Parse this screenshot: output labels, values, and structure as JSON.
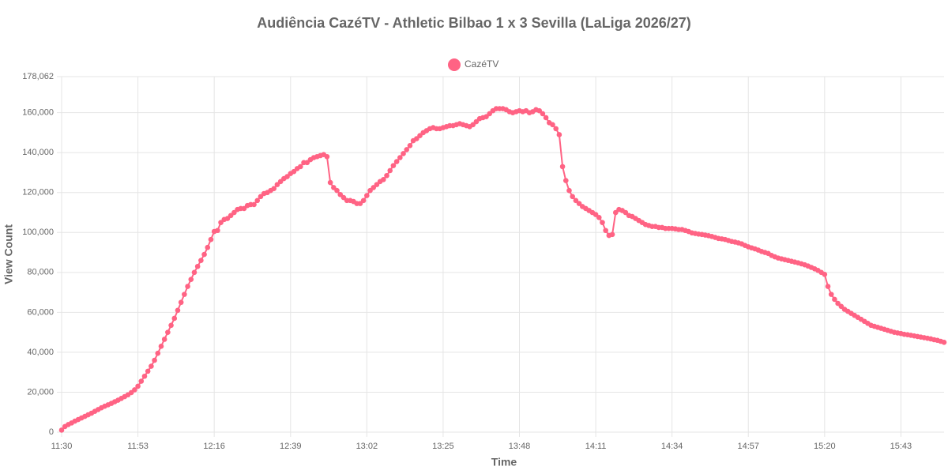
{
  "chart_data": {
    "type": "line",
    "title": "Audiência CazéTV - Athletic Bilbao 1 x 3 Sevilla (LaLiga 2026/27)",
    "x_label": "Time",
    "y_label": "View Count",
    "categories": [
      "11:30",
      null,
      null,
      null,
      null,
      null,
      null,
      null,
      null,
      null,
      null,
      null,
      null,
      null,
      null,
      null,
      null,
      null,
      null,
      null,
      null,
      null,
      null,
      "11:53",
      null,
      null,
      null,
      null,
      null,
      null,
      null,
      null,
      null,
      null,
      null,
      null,
      null,
      null,
      null,
      null,
      null,
      null,
      null,
      null,
      null,
      null,
      "12:16",
      null,
      null,
      null,
      null,
      null,
      null,
      null,
      null,
      null,
      null,
      null,
      null,
      null,
      null,
      null,
      null,
      null,
      null,
      null,
      null,
      null,
      null,
      "12:39",
      null,
      null,
      null,
      null,
      null,
      null,
      null,
      null,
      null,
      null,
      null,
      null,
      null,
      null,
      null,
      null,
      null,
      null,
      null,
      null,
      null,
      null,
      "13:02",
      null,
      null,
      null,
      null,
      null,
      null,
      null,
      null,
      null,
      null,
      null,
      null,
      null,
      null,
      null,
      null,
      null,
      null,
      null,
      null,
      null,
      null,
      "13:25",
      null,
      null,
      null,
      null,
      null,
      null,
      null,
      null,
      null,
      null,
      null,
      null,
      null,
      null,
      null,
      null,
      null,
      null,
      null,
      null,
      null,
      null,
      "13:48",
      null,
      null,
      null,
      null,
      null,
      null,
      null,
      null,
      null,
      null,
      null,
      null,
      null,
      null,
      null,
      null,
      null,
      null,
      null,
      null,
      null,
      null,
      "14:11",
      null,
      null,
      null,
      null,
      null,
      null,
      null,
      null,
      null,
      null,
      null,
      null,
      null,
      null,
      null,
      null,
      null,
      null,
      null,
      null,
      null,
      null,
      "14:34",
      null,
      null,
      null,
      null,
      null,
      null,
      null,
      null,
      null,
      null,
      null,
      null,
      null,
      null,
      null,
      null,
      null,
      null,
      null,
      null,
      null,
      null,
      "14:57",
      null,
      null,
      null,
      null,
      null,
      null,
      null,
      null,
      null,
      null,
      null,
      null,
      null,
      null,
      null,
      null,
      null,
      null,
      null,
      null,
      null,
      null,
      "15:20",
      null,
      null,
      null,
      null,
      null,
      null,
      null,
      null,
      null,
      null,
      null,
      null,
      null,
      null,
      null,
      null,
      null,
      null,
      null,
      null,
      null,
      null,
      "15:43",
      null,
      null,
      null,
      null,
      null,
      null,
      null,
      null,
      null,
      null,
      null,
      null,
      null
    ],
    "series": [
      {
        "name": "CazéTV",
        "color": "#ff6384",
        "values": [
          1000,
          2800,
          3800,
          4600,
          5500,
          6300,
          7100,
          7900,
          8700,
          9500,
          10400,
          11300,
          12200,
          13000,
          13700,
          14400,
          15200,
          16000,
          16900,
          17800,
          18700,
          19800,
          21200,
          23000,
          25500,
          28000,
          30500,
          33000,
          36000,
          39500,
          43000,
          46500,
          50000,
          53500,
          57000,
          61000,
          65000,
          69000,
          73000,
          76500,
          80000,
          83000,
          86000,
          89000,
          92500,
          96500,
          100500,
          101000,
          105000,
          106500,
          107000,
          108500,
          110000,
          111500,
          112000,
          112000,
          113500,
          114000,
          114000,
          116000,
          118000,
          119500,
          120000,
          121000,
          122000,
          124000,
          125500,
          127000,
          128000,
          129500,
          130500,
          132000,
          133000,
          135000,
          135000,
          136500,
          137500,
          138000,
          138500,
          139000,
          138000,
          125000,
          122500,
          121000,
          119000,
          117500,
          116000,
          116000,
          115500,
          114500,
          114500,
          116000,
          118500,
          121000,
          122500,
          124000,
          125500,
          126500,
          128500,
          131000,
          133500,
          135500,
          137500,
          139500,
          141500,
          143500,
          146000,
          147000,
          148500,
          150000,
          151000,
          152000,
          152500,
          152000,
          152000,
          152500,
          153000,
          153500,
          153500,
          154000,
          154500,
          154000,
          153500,
          153000,
          154000,
          155500,
          157000,
          157500,
          158000,
          159500,
          161000,
          162000,
          162000,
          162000,
          161500,
          160500,
          160000,
          160500,
          161000,
          160500,
          161000,
          160000,
          160500,
          161500,
          161000,
          159500,
          157500,
          155000,
          154000,
          152000,
          149000,
          133000,
          126000,
          121000,
          118000,
          116000,
          114500,
          113000,
          112000,
          111000,
          110000,
          109000,
          107500,
          105000,
          101000,
          98500,
          99000,
          110000,
          111500,
          111000,
          110000,
          108500,
          108000,
          107000,
          106000,
          105000,
          104000,
          103500,
          103000,
          103000,
          102500,
          102500,
          102000,
          102000,
          102000,
          101800,
          101500,
          101500,
          101000,
          100500,
          99800,
          99500,
          99200,
          99000,
          98700,
          98400,
          98000,
          97500,
          97000,
          96800,
          96500,
          96000,
          95500,
          95200,
          94800,
          94300,
          93500,
          92800,
          92300,
          91800,
          91200,
          90500,
          90000,
          89500,
          88500,
          87800,
          87200,
          86800,
          86400,
          86000,
          85600,
          85200,
          84800,
          84300,
          83800,
          83200,
          82500,
          81800,
          81000,
          80000,
          79000,
          73000,
          69000,
          66500,
          64500,
          63000,
          61500,
          60500,
          59500,
          58500,
          57500,
          56500,
          55500,
          54500,
          53500,
          53000,
          52500,
          52000,
          51500,
          51000,
          50500,
          50000,
          49700,
          49400,
          49000,
          48800,
          48500,
          48200,
          47900,
          47600,
          47300,
          47000,
          46700,
          46300,
          46000,
          45500,
          45000
        ]
      }
    ],
    "ylim": [
      0,
      178062
    ],
    "yticks": [
      0,
      {
        "value": 20000,
        "label": "20,000"
      },
      {
        "value": 40000,
        "label": "40,000"
      },
      {
        "value": 60000,
        "label": "60,000"
      },
      {
        "value": 80000,
        "label": "80,000"
      },
      {
        "value": 100000,
        "label": "100,000"
      },
      {
        "value": 120000,
        "label": "120,000"
      },
      {
        "value": 140000,
        "label": "140,000"
      },
      {
        "value": 160000,
        "label": "160,000"
      },
      {
        "value": 178062,
        "label": "178,062"
      }
    ],
    "grid": true,
    "legend": "top"
  }
}
